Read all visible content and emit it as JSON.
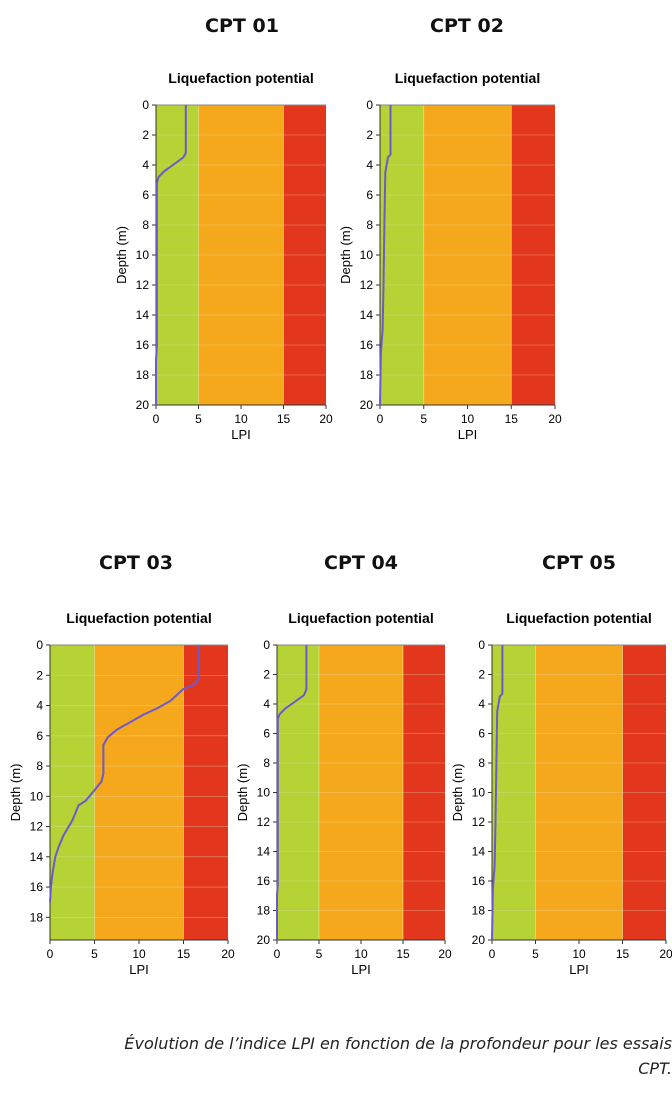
{
  "colors": {
    "zone_low": "#b5d334",
    "zone_mid": "#f6a81c",
    "zone_high": "#e2371c",
    "profile_line": "#6a5acd",
    "grid": "#e8e0c0"
  },
  "caption": "Évolution de l’indice LPI en fonction de la profondeur pour les essais CPT.",
  "chart_data": [
    {
      "type": "line",
      "heading": "CPT 01",
      "title": "Liquefaction potential",
      "xlabel": "LPI",
      "ylabel": "Depth (m)",
      "xlim": [
        0,
        20
      ],
      "ylim": [
        0,
        20
      ],
      "y_inverted": true,
      "xticks": [
        0,
        5,
        10,
        15,
        20
      ],
      "yticks": [
        0,
        2,
        4,
        6,
        8,
        10,
        12,
        14,
        16,
        18,
        20
      ],
      "zones": [
        {
          "from": 0,
          "to": 5,
          "color": "zone_low"
        },
        {
          "from": 5,
          "to": 15,
          "color": "zone_mid"
        },
        {
          "from": 15,
          "to": 20,
          "color": "zone_high"
        }
      ],
      "series": [
        {
          "x": [
            3.5,
            3.5,
            3.2,
            2.0,
            1.0,
            0.3,
            0.1,
            0.1,
            0.0,
            0.0
          ],
          "y": [
            0,
            3.2,
            3.5,
            4.0,
            4.4,
            4.8,
            5.2,
            16.0,
            17.0,
            20.0
          ]
        }
      ]
    },
    {
      "type": "line",
      "heading": "CPT 02",
      "title": "Liquefaction potential",
      "xlabel": "LPI",
      "ylabel": "Depth (m)",
      "xlim": [
        0,
        20
      ],
      "ylim": [
        0,
        20
      ],
      "y_inverted": true,
      "xticks": [
        0,
        5,
        10,
        15,
        20
      ],
      "yticks": [
        0,
        2,
        4,
        6,
        8,
        10,
        12,
        14,
        16,
        18,
        20
      ],
      "zones": [
        {
          "from": 0,
          "to": 5,
          "color": "zone_low"
        },
        {
          "from": 5,
          "to": 15,
          "color": "zone_mid"
        },
        {
          "from": 15,
          "to": 20,
          "color": "zone_high"
        }
      ],
      "series": [
        {
          "x": [
            1.2,
            1.2,
            0.9,
            0.6,
            0.5,
            0.4,
            0.3,
            0.1,
            0.0
          ],
          "y": [
            0,
            3.3,
            3.5,
            4.5,
            8.0,
            12.0,
            15.0,
            16.5,
            20.0
          ]
        }
      ]
    },
    {
      "type": "line",
      "heading": "CPT 03",
      "title": "Liquefaction potential",
      "xlabel": "LPI",
      "ylabel": "Depth (m)",
      "xlim": [
        0,
        20
      ],
      "ylim": [
        0,
        19.5
      ],
      "y_inverted": true,
      "xticks": [
        0,
        5,
        10,
        15,
        20
      ],
      "yticks": [
        0,
        2,
        4,
        6,
        8,
        10,
        12,
        14,
        16,
        18
      ],
      "zones": [
        {
          "from": 0,
          "to": 5,
          "color": "zone_low"
        },
        {
          "from": 5,
          "to": 15,
          "color": "zone_mid"
        },
        {
          "from": 15,
          "to": 20,
          "color": "zone_high"
        }
      ],
      "series": [
        {
          "x": [
            16.7,
            16.7,
            16.3,
            15.0,
            13.5,
            12.0,
            10.5,
            9.0,
            7.5,
            6.5,
            6.0,
            6.0,
            5.8,
            5.0,
            4.0,
            3.2,
            2.8,
            2.5,
            2.0,
            1.5,
            1.0,
            0.6,
            0.3,
            0.1,
            0.0
          ],
          "y": [
            0,
            2.2,
            2.6,
            2.9,
            3.7,
            4.2,
            4.6,
            5.1,
            5.6,
            6.1,
            6.6,
            8.5,
            9.0,
            9.6,
            10.3,
            10.6,
            11.2,
            11.6,
            12.1,
            12.6,
            13.3,
            14.0,
            15.0,
            16.0,
            17.0
          ]
        }
      ]
    },
    {
      "type": "line",
      "heading": "CPT 04",
      "title": "Liquefaction potential",
      "xlabel": "LPI",
      "ylabel": "Depth (m)",
      "xlim": [
        0,
        20
      ],
      "ylim": [
        0,
        20
      ],
      "y_inverted": true,
      "xticks": [
        0,
        5,
        10,
        15,
        20
      ],
      "yticks": [
        0,
        2,
        4,
        6,
        8,
        10,
        12,
        14,
        16,
        18,
        20
      ],
      "zones": [
        {
          "from": 0,
          "to": 5,
          "color": "zone_low"
        },
        {
          "from": 5,
          "to": 15,
          "color": "zone_mid"
        },
        {
          "from": 15,
          "to": 20,
          "color": "zone_high"
        }
      ],
      "series": [
        {
          "x": [
            3.5,
            3.5,
            3.2,
            2.0,
            1.0,
            0.3,
            0.1,
            0.1,
            0.0,
            0.0
          ],
          "y": [
            0,
            3.0,
            3.4,
            3.9,
            4.3,
            4.7,
            5.0,
            16.2,
            17.0,
            20.0
          ]
        }
      ]
    },
    {
      "type": "line",
      "heading": "CPT 05",
      "title": "Liquefaction potential",
      "xlabel": "LPI",
      "ylabel": "Depth (m)",
      "xlim": [
        0,
        20
      ],
      "ylim": [
        0,
        20
      ],
      "y_inverted": true,
      "xticks": [
        0,
        5,
        10,
        15,
        20
      ],
      "yticks": [
        0,
        2,
        4,
        6,
        8,
        10,
        12,
        14,
        16,
        18,
        20
      ],
      "zones": [
        {
          "from": 0,
          "to": 5,
          "color": "zone_low"
        },
        {
          "from": 5,
          "to": 15,
          "color": "zone_mid"
        },
        {
          "from": 15,
          "to": 20,
          "color": "zone_high"
        }
      ],
      "series": [
        {
          "x": [
            1.2,
            1.2,
            0.9,
            0.6,
            0.5,
            0.4,
            0.3,
            0.1,
            0.0
          ],
          "y": [
            0,
            3.3,
            3.5,
            4.5,
            8.0,
            12.0,
            15.0,
            16.5,
            20.0
          ]
        }
      ]
    }
  ]
}
